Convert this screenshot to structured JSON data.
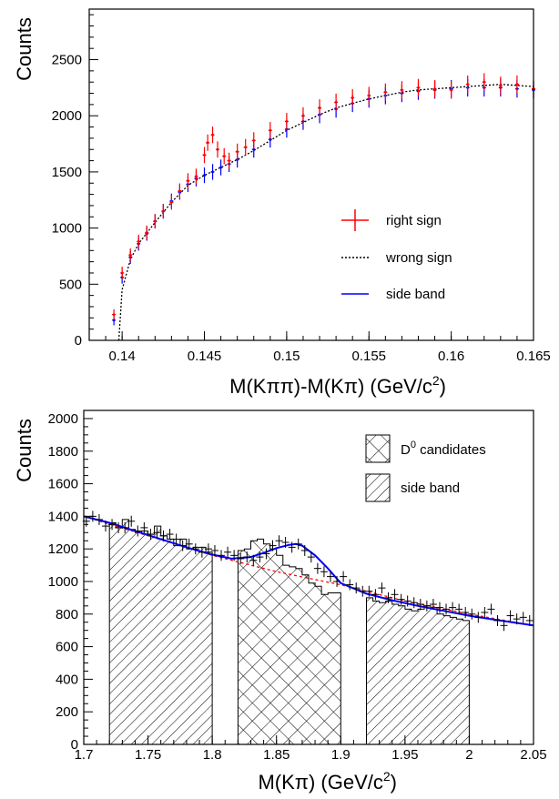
{
  "chart_data": [
    {
      "type": "scatter",
      "title": "",
      "xlabel": "M(Kππ)-M(Kπ) (GeV/c",
      "xlabel_sup": "2",
      "xlabel_close": ")",
      "ylabel": "Counts",
      "xlim": [
        0.138,
        0.165
      ],
      "ylim": [
        0,
        2950
      ],
      "x_ticks": [
        0.14,
        0.145,
        0.15,
        0.155,
        0.16,
        0.165
      ],
      "x_tick_labels": [
        "0.14",
        "0.145",
        "0.15",
        "0.155",
        "0.16",
        "0.165"
      ],
      "y_ticks": [
        0,
        500,
        1000,
        1500,
        2000,
        2500
      ],
      "y_tick_labels": [
        "0",
        "500",
        "1000",
        "1500",
        "2000",
        "2500"
      ],
      "grid": false,
      "legend_position": "right-center",
      "legend": [
        "right sign",
        "wrong sign",
        "side band"
      ],
      "colors": {
        "right_sign": "#ff0000",
        "wrong_sign": "#000000",
        "side_band": "#0000ff"
      },
      "series": [
        {
          "name": "right sign",
          "style": "points-with-error-bars",
          "x": [
            0.1395,
            0.14,
            0.1405,
            0.141,
            0.1415,
            0.142,
            0.1425,
            0.143,
            0.1435,
            0.144,
            0.1445,
            0.145,
            0.1452,
            0.1455,
            0.1458,
            0.1462,
            0.1465,
            0.147,
            0.1475,
            0.148,
            0.149,
            0.15,
            0.151,
            0.152,
            0.153,
            0.154,
            0.155,
            0.156,
            0.157,
            0.158,
            0.159,
            0.16,
            0.161,
            0.162,
            0.163,
            0.164,
            0.165
          ],
          "y": [
            230,
            600,
            760,
            880,
            960,
            1060,
            1150,
            1230,
            1330,
            1420,
            1460,
            1650,
            1760,
            1830,
            1700,
            1640,
            1600,
            1680,
            1720,
            1780,
            1870,
            1950,
            2000,
            2070,
            2120,
            2160,
            2180,
            2210,
            2230,
            2250,
            2240,
            2230,
            2280,
            2300,
            2270,
            2280,
            2240
          ]
        },
        {
          "name": "wrong sign",
          "style": "dashed-line",
          "x": [
            0.1398,
            0.14,
            0.1405,
            0.141,
            0.142,
            0.143,
            0.144,
            0.145,
            0.146,
            0.147,
            0.148,
            0.149,
            0.15,
            0.151,
            0.152,
            0.153,
            0.154,
            0.155,
            0.156,
            0.157,
            0.158,
            0.159,
            0.16,
            0.161,
            0.162,
            0.163,
            0.164,
            0.165
          ],
          "y": [
            0,
            450,
            720,
            860,
            1050,
            1230,
            1380,
            1470,
            1540,
            1610,
            1690,
            1780,
            1870,
            1940,
            2010,
            2070,
            2110,
            2150,
            2180,
            2210,
            2230,
            2240,
            2250,
            2260,
            2270,
            2280,
            2270,
            2260
          ]
        },
        {
          "name": "side band",
          "style": "points-with-error-bars",
          "x": [
            0.1395,
            0.14,
            0.1405,
            0.141,
            0.1415,
            0.142,
            0.1425,
            0.143,
            0.1435,
            0.144,
            0.1445,
            0.145,
            0.1455,
            0.146,
            0.1465,
            0.147,
            0.148,
            0.149,
            0.15,
            0.151,
            0.152,
            0.153,
            0.154,
            0.155,
            0.156,
            0.157,
            0.158,
            0.159,
            0.16,
            0.161,
            0.162,
            0.163,
            0.164,
            0.165
          ],
          "y": [
            180,
            560,
            740,
            860,
            950,
            1060,
            1150,
            1240,
            1320,
            1390,
            1440,
            1470,
            1500,
            1540,
            1570,
            1610,
            1700,
            1790,
            1880,
            1950,
            2010,
            2060,
            2110,
            2150,
            2180,
            2200,
            2220,
            2230,
            2240,
            2250,
            2250,
            2250,
            2240,
            2230
          ]
        }
      ]
    },
    {
      "type": "bar",
      "title": "",
      "xlabel": "M(Kπ) (GeV/c",
      "xlabel_sup": "2",
      "xlabel_close": ")",
      "ylabel": "Counts",
      "xlim": [
        1.7,
        2.05
      ],
      "ylim": [
        0,
        2050
      ],
      "x_ticks": [
        1.7,
        1.75,
        1.8,
        1.85,
        1.9,
        1.95,
        2.0,
        2.05
      ],
      "x_tick_labels": [
        "1.7",
        "1.75",
        "1.8",
        "1.85",
        "1.9",
        "1.95",
        "2",
        "2.05"
      ],
      "y_ticks": [
        0,
        200,
        400,
        600,
        800,
        1000,
        1200,
        1400,
        1600,
        1800,
        2000
      ],
      "y_tick_labels": [
        "0",
        "200",
        "400",
        "600",
        "800",
        "1000",
        "1200",
        "1400",
        "1600",
        "1800",
        "2000"
      ],
      "grid": false,
      "legend_position": "top-right",
      "legend": [
        {
          "label": "D",
          "sup": "0",
          "suffix": " candidates",
          "hatch": "crosshatch"
        },
        {
          "label": "side band",
          "hatch": "diagonal"
        }
      ],
      "regions": [
        {
          "name": "side band",
          "x_range": [
            1.72,
            1.8
          ],
          "hatch": "diagonal"
        },
        {
          "name": "D0 candidates",
          "x_range": [
            1.82,
            1.9
          ],
          "hatch": "crosshatch"
        },
        {
          "name": "side band",
          "x_range": [
            1.92,
            2.0
          ],
          "hatch": "diagonal"
        }
      ],
      "histogram": {
        "bin_width": 0.005,
        "x_start": 1.72,
        "values": [
          1360,
          1330,
          1380,
          1320,
          1300,
          1310,
          1290,
          1340,
          1280,
          1260,
          1220,
          1260,
          1200,
          1210,
          1210,
          1180,
          1120,
          1150,
          1150,
          1170,
          1190,
          1200,
          1250,
          1260,
          1230,
          1200,
          1160,
          1100,
          1090,
          1080,
          1040,
          990,
          970,
          920,
          930,
          930,
          940,
          910,
          920,
          900,
          900,
          880,
          870,
          880,
          860,
          850,
          830,
          820,
          830,
          850,
          840,
          800,
          790,
          780,
          770,
          760,
          760,
          740,
          750,
          730,
          740,
          730,
          720,
          720,
          710,
          720,
          700,
          700
        ]
      },
      "points": {
        "x": [
          1.702,
          1.707,
          1.712,
          1.717,
          1.722,
          1.727,
          1.732,
          1.737,
          1.742,
          1.747,
          1.752,
          1.757,
          1.762,
          1.767,
          1.772,
          1.777,
          1.782,
          1.787,
          1.792,
          1.797,
          1.802,
          1.807,
          1.812,
          1.817,
          1.822,
          1.827,
          1.832,
          1.837,
          1.842,
          1.847,
          1.852,
          1.857,
          1.862,
          1.867,
          1.872,
          1.877,
          1.882,
          1.887,
          1.892,
          1.897,
          1.902,
          1.907,
          1.912,
          1.917,
          1.922,
          1.927,
          1.932,
          1.937,
          1.942,
          1.947,
          1.952,
          1.957,
          1.962,
          1.967,
          1.972,
          1.977,
          1.982,
          1.987,
          1.992,
          1.997,
          2.002,
          2.007,
          2.012,
          2.017,
          2.022,
          2.027,
          2.032,
          2.037,
          2.042,
          2.047
        ],
        "y": [
          1370,
          1400,
          1380,
          1340,
          1350,
          1330,
          1330,
          1370,
          1310,
          1330,
          1290,
          1300,
          1280,
          1290,
          1260,
          1220,
          1230,
          1200,
          1180,
          1200,
          1190,
          1160,
          1180,
          1160,
          1140,
          1150,
          1130,
          1150,
          1170,
          1220,
          1250,
          1240,
          1210,
          1230,
          1190,
          1150,
          1080,
          1060,
          1030,
          1000,
          1030,
          980,
          960,
          940,
          940,
          920,
          960,
          900,
          920,
          890,
          880,
          870,
          860,
          850,
          860,
          840,
          830,
          840,
          830,
          810,
          800,
          780,
          810,
          830,
          760,
          730,
          790,
          770,
          780,
          760
        ]
      },
      "fit_curve": {
        "name": "total fit",
        "color": "#0000ff",
        "x": [
          1.7,
          1.72,
          1.74,
          1.76,
          1.78,
          1.8,
          1.815,
          1.83,
          1.84,
          1.85,
          1.86,
          1.865,
          1.87,
          1.88,
          1.89,
          1.9,
          1.92,
          1.94,
          1.96,
          1.98,
          2.0,
          2.02,
          2.05
        ],
        "y": [
          1400,
          1360,
          1310,
          1260,
          1210,
          1165,
          1140,
          1150,
          1175,
          1205,
          1225,
          1230,
          1220,
          1160,
          1080,
          990,
          925,
          885,
          850,
          820,
          790,
          765,
          730
        ]
      },
      "background_curve": {
        "name": "background",
        "color": "#ff0000",
        "style": "dashed",
        "x": [
          1.7,
          1.75,
          1.8,
          1.85,
          1.9,
          1.95,
          2.0,
          2.05
        ],
        "y": [
          1400,
          1280,
          1160,
          1060,
          980,
          880,
          800,
          730
        ]
      }
    }
  ]
}
